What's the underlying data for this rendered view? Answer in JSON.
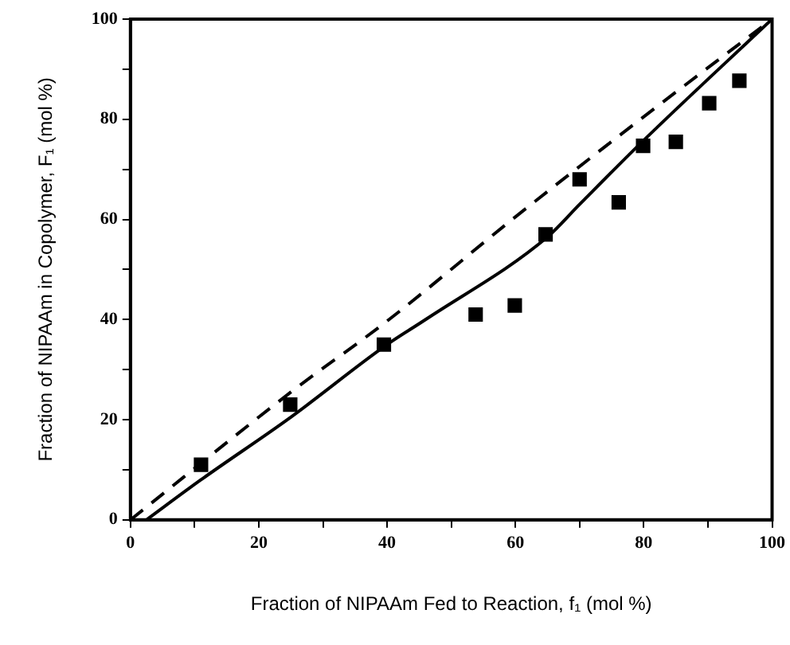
{
  "chart_data": {
    "type": "scatter",
    "xlabel": "Fraction of NIPAAm Fed to Reaction, f₁ (mol %)",
    "ylabel": "Fraction of NIPAAm in Copolymer, F₁ (mol %)",
    "xlim": [
      0,
      100
    ],
    "ylim": [
      0,
      100
    ],
    "xticks": [
      0,
      {
        "value": 10,
        "label": null
      },
      20,
      {
        "value": 30,
        "label": null
      },
      40,
      {
        "value": 50,
        "label": null
      },
      60,
      {
        "value": 70,
        "label": null
      },
      80,
      {
        "value": 90,
        "label": null
      },
      100
    ],
    "yticks": [
      0,
      {
        "value": 10,
        "label": null
      },
      20,
      {
        "value": 30,
        "label": null
      },
      40,
      {
        "value": 50,
        "label": null
      },
      60,
      {
        "value": 70,
        "label": null
      },
      80,
      {
        "value": 90,
        "label": null
      },
      100
    ],
    "grid": false,
    "legend": false,
    "series": [
      {
        "marker": "square",
        "color": "#000000",
        "x": [
          11,
          24.9,
          39.5,
          53.8,
          59.9,
          64.7,
          70,
          76.1,
          79.9,
          85,
          90.2,
          94.9
        ],
        "values": [
          11,
          23,
          35,
          41,
          42.8,
          57,
          68,
          63.4,
          74.7,
          75.5,
          83.2,
          87.7
        ]
      },
      {
        "type": "line",
        "marker": "none",
        "line_style": "solid",
        "color": "#000000",
        "x": [
          2.5,
          11,
          25,
          40,
          46,
          65,
          70,
          80,
          100
        ],
        "values": [
          0,
          8,
          20.5,
          35,
          40,
          56.5,
          63,
          75.8,
          100
        ]
      },
      {
        "type": "line",
        "marker": "none",
        "line_style": "dashed",
        "color": "#000000",
        "x": [
          0,
          25,
          40,
          60,
          80,
          100
        ],
        "values": [
          0,
          25.5,
          39.7,
          60.5,
          80.5,
          100
        ]
      }
    ]
  }
}
